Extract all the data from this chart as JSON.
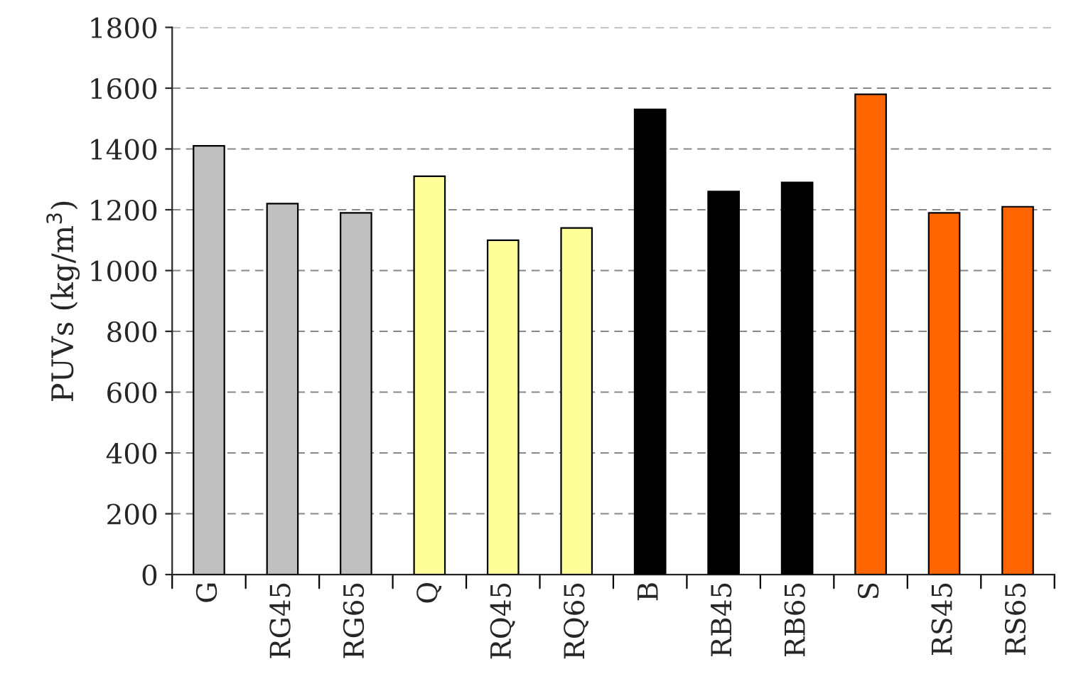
{
  "chart_data": {
    "type": "bar",
    "ylabel": "PUVs (kg/m$^{3}$)",
    "categories": [
      "G",
      "RG45",
      "RG65",
      "Q",
      "RQ45",
      "RQ65",
      "B",
      "RB45",
      "RB65",
      "S",
      "RS45",
      "RS65"
    ],
    "values": [
      1410,
      1220,
      1190,
      1310,
      1100,
      1140,
      1530,
      1260,
      1290,
      1580,
      1190,
      1210
    ],
    "colors": [
      "#c0c0c0",
      "#c0c0c0",
      "#c0c0c0",
      "#ffff99",
      "#ffff99",
      "#ffff99",
      "#000000",
      "#000000",
      "#000000",
      "#ff6600",
      "#ff6600",
      "#ff6600"
    ],
    "ylim": [
      0,
      1800
    ],
    "yticks": [
      0,
      200,
      400,
      600,
      800,
      1000,
      1200,
      1400,
      1600,
      1800
    ],
    "grid": "y"
  }
}
